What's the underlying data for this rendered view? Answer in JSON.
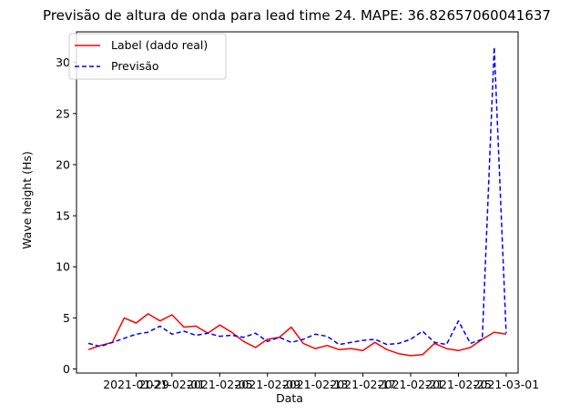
{
  "chart_data": {
    "type": "line",
    "title": "Previsão de altura de onda para lead time 24. MAPE: 36.82657060041637",
    "xlabel": "Data",
    "ylabel": "Wave height (Hs)",
    "xlim": [
      "2021-01-24",
      "2021-03-02"
    ],
    "ylim": [
      -0.4,
      33
    ],
    "grid": false,
    "legend_position": "top-left",
    "x_ticks": [
      "2021-01-29",
      "2021-02-01",
      "2021-02-05",
      "2021-02-09",
      "2021-02-13",
      "2021-02-17",
      "2021-02-21",
      "2021-02-25",
      "2021-03-01"
    ],
    "x_tick_labels": [
      "2021-01-29",
      "2021-02-01",
      "2021-02-05",
      "2021-02-09",
      "2021-02-13",
      "2021-02-17",
      "2021-02-21",
      "2021-02-25",
      "2021-03-01"
    ],
    "y_ticks": [
      0,
      5,
      10,
      15,
      20,
      25,
      30
    ],
    "y_tick_labels": [
      "0",
      "5",
      "10",
      "15",
      "20",
      "25",
      "30"
    ],
    "series": [
      {
        "name": "Label (dado real)",
        "color": "#ff0000",
        "style": "solid",
        "x": [
          "2021-01-25",
          "2021-01-26",
          "2021-01-27",
          "2021-01-28",
          "2021-01-29",
          "2021-01-30",
          "2021-01-31",
          "2021-02-01",
          "2021-02-02",
          "2021-02-03",
          "2021-02-04",
          "2021-02-05",
          "2021-02-06",
          "2021-02-07",
          "2021-02-08",
          "2021-02-09",
          "2021-02-10",
          "2021-02-11",
          "2021-02-12",
          "2021-02-13",
          "2021-02-14",
          "2021-02-15",
          "2021-02-16",
          "2021-02-17",
          "2021-02-18",
          "2021-02-19",
          "2021-02-20",
          "2021-02-21",
          "2021-02-22",
          "2021-02-23",
          "2021-02-24",
          "2021-02-25",
          "2021-02-26",
          "2021-02-27",
          "2021-02-28",
          "2021-03-01"
        ],
        "y": [
          1.9,
          2.3,
          2.6,
          5.0,
          4.5,
          5.4,
          4.7,
          5.3,
          4.1,
          4.2,
          3.5,
          4.3,
          3.6,
          2.7,
          2.1,
          2.9,
          3.1,
          4.1,
          2.5,
          2.0,
          2.3,
          1.9,
          2.0,
          1.8,
          2.6,
          1.9,
          1.5,
          1.3,
          1.4,
          2.5,
          2.0,
          1.8,
          2.1,
          2.9,
          3.6,
          3.4
        ]
      },
      {
        "name": "Previsão",
        "color": "#0000ff",
        "style": "dashed",
        "x": [
          "2021-01-25",
          "2021-01-26",
          "2021-01-27",
          "2021-01-28",
          "2021-01-29",
          "2021-01-30",
          "2021-01-31",
          "2021-02-01",
          "2021-02-02",
          "2021-02-03",
          "2021-02-04",
          "2021-02-05",
          "2021-02-06",
          "2021-02-07",
          "2021-02-08",
          "2021-02-09",
          "2021-02-10",
          "2021-02-11",
          "2021-02-12",
          "2021-02-13",
          "2021-02-14",
          "2021-02-15",
          "2021-02-16",
          "2021-02-17",
          "2021-02-18",
          "2021-02-19",
          "2021-02-20",
          "2021-02-21",
          "2021-02-22",
          "2021-02-23",
          "2021-02-24",
          "2021-02-25",
          "2021-02-26",
          "2021-02-27",
          "2021-02-28",
          "2021-03-01"
        ],
        "y": [
          2.5,
          2.2,
          2.6,
          3.0,
          3.4,
          3.6,
          4.2,
          3.4,
          3.7,
          3.3,
          3.5,
          3.2,
          3.3,
          3.1,
          3.5,
          2.7,
          3.1,
          2.6,
          2.9,
          3.4,
          3.2,
          2.4,
          2.6,
          2.8,
          2.9,
          2.4,
          2.5,
          2.9,
          3.7,
          2.6,
          2.4,
          4.7,
          2.5,
          2.9,
          31.5,
          3.5
        ]
      }
    ]
  }
}
